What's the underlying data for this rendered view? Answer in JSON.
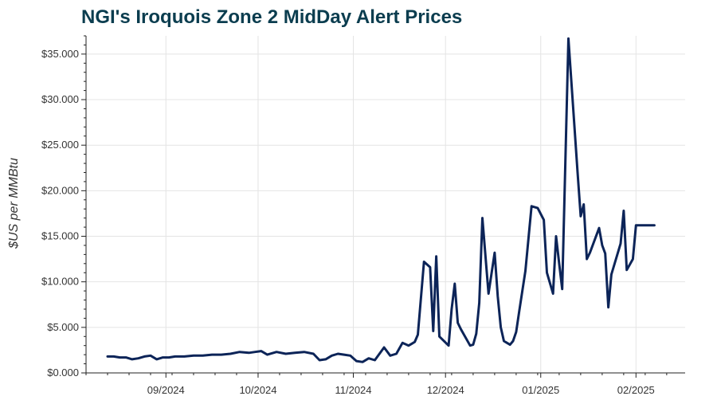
{
  "chart_data": {
    "type": "line",
    "title": "NGI's Iroquois Zone 2 MidDay Alert Prices",
    "xlabel": "",
    "ylabel": "$US per MMBtu",
    "ylim": [
      0,
      37
    ],
    "grid": true,
    "x_tick_labels": [
      "09/2024",
      "10/2024",
      "11/2024",
      "12/2024",
      "01/2025",
      "02/2025"
    ],
    "x_ticks": [
      "2024-09-01",
      "2024-10-01",
      "2024-11-01",
      "2024-12-01",
      "2025-01-01",
      "2025-02-01"
    ],
    "y_ticks": [
      0,
      5,
      10,
      15,
      20,
      25,
      30,
      35
    ],
    "y_tick_labels": [
      "$0.000",
      "$5.000",
      "$10.000",
      "$15.000",
      "$20.000",
      "$25.000",
      "$30.000",
      "$35.000"
    ],
    "xlim": [
      "2024-08-06",
      "2025-02-17"
    ],
    "line_color": "#0c2458",
    "series": [
      {
        "x": [
          "2024-08-13",
          "2024-08-15",
          "2024-08-17",
          "2024-08-19",
          "2024-08-21",
          "2024-08-23",
          "2024-08-25",
          "2024-08-27",
          "2024-08-29",
          "2024-08-31",
          "2024-09-02",
          "2024-09-04",
          "2024-09-07",
          "2024-09-10",
          "2024-09-13",
          "2024-09-16",
          "2024-09-19",
          "2024-09-22",
          "2024-09-25",
          "2024-09-28",
          "2024-09-30",
          "2024-10-02",
          "2024-10-04",
          "2024-10-07",
          "2024-10-10",
          "2024-10-13",
          "2024-10-16",
          "2024-10-19",
          "2024-10-21",
          "2024-10-23",
          "2024-10-25",
          "2024-10-27",
          "2024-10-29",
          "2024-10-31",
          "2024-11-02",
          "2024-11-04",
          "2024-11-06",
          "2024-11-08",
          "2024-11-11",
          "2024-11-13",
          "2024-11-15",
          "2024-11-17",
          "2024-11-19",
          "2024-11-20",
          "2024-11-21",
          "2024-11-22",
          "2024-11-24",
          "2024-11-26",
          "2024-11-27",
          "2024-11-28",
          "2024-11-29",
          "2024-12-02",
          "2024-12-03",
          "2024-12-04",
          "2024-12-05",
          "2024-12-06",
          "2024-12-09",
          "2024-12-10",
          "2024-12-11",
          "2024-12-12",
          "2024-12-13",
          "2024-12-15",
          "2024-12-17",
          "2024-12-18",
          "2024-12-19",
          "2024-12-20",
          "2024-12-22",
          "2024-12-23",
          "2024-12-24",
          "2024-12-25",
          "2024-12-27",
          "2024-12-29",
          "2024-12-31",
          "2025-01-02",
          "2025-01-03",
          "2025-01-05",
          "2025-01-06",
          "2025-01-07",
          "2025-01-08",
          "2025-01-10",
          "2025-01-13",
          "2025-01-14",
          "2025-01-15",
          "2025-01-16",
          "2025-01-17",
          "2025-01-20",
          "2025-01-21",
          "2025-01-22",
          "2025-01-23",
          "2025-01-24",
          "2025-01-27",
          "2025-01-28",
          "2025-01-29",
          "2025-01-31",
          "2025-02-01",
          "2025-02-03",
          "2025-02-04",
          "2025-02-05",
          "2025-02-06",
          "2025-02-07"
        ],
        "values": [
          1.8,
          1.8,
          1.7,
          1.7,
          1.5,
          1.6,
          1.8,
          1.9,
          1.5,
          1.7,
          1.7,
          1.8,
          1.8,
          1.9,
          1.9,
          2.0,
          2.0,
          2.1,
          2.3,
          2.2,
          2.3,
          2.4,
          2.0,
          2.3,
          2.1,
          2.2,
          2.3,
          2.1,
          1.4,
          1.5,
          1.9,
          2.1,
          2.0,
          1.9,
          1.3,
          1.2,
          1.6,
          1.4,
          2.8,
          1.9,
          2.1,
          3.3,
          3.0,
          3.2,
          3.4,
          4.2,
          12.2,
          11.6,
          4.6,
          12.8,
          4.0,
          3.0,
          7.0,
          9.8,
          5.5,
          4.8,
          3.0,
          3.1,
          4.3,
          7.7,
          17.0,
          8.7,
          13.2,
          8.4,
          5.0,
          3.5,
          3.1,
          3.5,
          4.5,
          6.8,
          11.2,
          18.3,
          18.1,
          16.8,
          11.0,
          8.7,
          15.0,
          12.0,
          9.2,
          36.7,
          22.0,
          17.2,
          18.5,
          12.5,
          13.2,
          15.9,
          14.0,
          13.1,
          7.2,
          10.8,
          14.2,
          17.8,
          11.3,
          12.5,
          16.2,
          16.2,
          16.2,
          16.2,
          16.2,
          16.2
        ]
      }
    ]
  }
}
